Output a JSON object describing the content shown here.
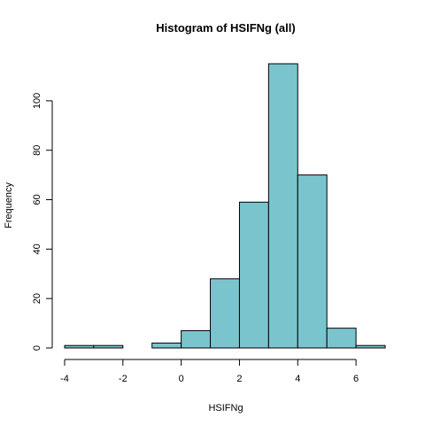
{
  "chart_data": {
    "type": "bar",
    "title": "Histogram of HSIFNg (all)",
    "xlabel": "HSIFNg",
    "ylabel": "Frequency",
    "bin_edges": [
      -4,
      -3,
      -2,
      -1,
      0,
      1,
      2,
      3,
      4,
      5,
      6,
      7
    ],
    "values": [
      1,
      1,
      0,
      2,
      7,
      28,
      59,
      115,
      70,
      8,
      1
    ],
    "xlim": [
      -4,
      7
    ],
    "ylim": [
      0,
      115
    ],
    "xticks": [
      -4,
      -2,
      0,
      2,
      4,
      6
    ],
    "yticks": [
      0,
      20,
      40,
      60,
      80,
      100
    ],
    "xtick_labels": [
      "-4",
      "-2",
      "0",
      "2",
      "4",
      "6"
    ],
    "ytick_labels": [
      "0",
      "20",
      "40",
      "60",
      "80",
      "100"
    ],
    "bar_color": "#7ac5cd",
    "grid": false
  }
}
